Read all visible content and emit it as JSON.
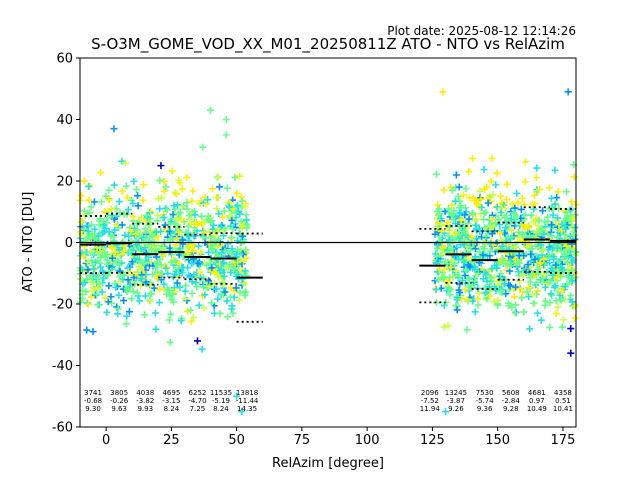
{
  "figure": {
    "plot_date": "Plot date: 2025-08-12 12:14:26"
  },
  "chart_data": {
    "type": "scatter",
    "title": "S-O3M_GOME_VOD_XX_M01_20250811Z ATO - NTO vs RelAzim",
    "xlabel": "RelAzim [degree]",
    "ylabel": "ATO - NTO [DU]",
    "xlim": [
      -10,
      180
    ],
    "ylim": [
      -60,
      60
    ],
    "xticks": [
      0,
      25,
      50,
      75,
      100,
      125,
      150,
      175
    ],
    "yticks": [
      -60,
      -40,
      -20,
      0,
      20,
      40,
      60
    ],
    "grid": false,
    "legend": "none",
    "colors": {
      "dark_blue": "#0000cc",
      "blue": "#0090ff",
      "cyan": "#22e0e8",
      "green": "#66ff88",
      "yellow_green": "#ccff44",
      "yellow": "#ffee00",
      "zero_line": "#000000"
    },
    "point_clouds": [
      {
        "x_range": [
          -10,
          54
        ],
        "y_center": -3,
        "y_spread": [
          -33,
          27
        ],
        "density": "high"
      },
      {
        "x_range": [
          126,
          180
        ],
        "y_center": -2,
        "y_spread": [
          -33,
          29
        ],
        "density": "high"
      }
    ],
    "outliers": [
      {
        "x": 40,
        "y": 43,
        "color": "green"
      },
      {
        "x": 46,
        "y": 40,
        "color": "green"
      },
      {
        "x": 46,
        "y": 35,
        "color": "green"
      },
      {
        "x": 37,
        "y": 31,
        "color": "green"
      },
      {
        "x": 3,
        "y": 37,
        "color": "blue"
      },
      {
        "x": 129,
        "y": 49,
        "color": "yellow"
      },
      {
        "x": 177,
        "y": 49,
        "color": "blue"
      },
      {
        "x": 21,
        "y": 25,
        "color": "dark_blue"
      },
      {
        "x": 50,
        "y": -50,
        "color": "cyan"
      },
      {
        "x": 52,
        "y": -55,
        "color": "cyan"
      },
      {
        "x": 130,
        "y": -55,
        "color": "cyan"
      },
      {
        "x": 178,
        "y": -36,
        "color": "dark_blue"
      },
      {
        "x": 178,
        "y": -28,
        "color": "dark_blue"
      },
      {
        "x": -5,
        "y": -29,
        "color": "blue"
      },
      {
        "x": 35,
        "y": -32,
        "color": "dark_blue"
      }
    ],
    "bins": [
      {
        "x_from": -10,
        "x_to": 0,
        "mean": -0.68,
        "std": 9.3,
        "count": "3741",
        "mean_label": "-0.68",
        "std_label": "9.30",
        "label_x": -5
      },
      {
        "x_from": 0,
        "x_to": 10,
        "mean": -0.26,
        "std": 9.63,
        "count": "3805",
        "mean_label": "-0.26",
        "std_label": "9.63",
        "label_x": 5
      },
      {
        "x_from": 10,
        "x_to": 20,
        "mean": -3.82,
        "std": 9.93,
        "count": "4038",
        "mean_label": "-3.82",
        "std_label": "9.93",
        "label_x": 15
      },
      {
        "x_from": 20,
        "x_to": 30,
        "mean": -3.15,
        "std": 8.24,
        "count": "4695",
        "mean_label": "-3.15",
        "std_label": "8.24",
        "label_x": 25
      },
      {
        "x_from": 30,
        "x_to": 40,
        "mean": -4.7,
        "std": 7.25,
        "count": "6252",
        "mean_label": "-4.70",
        "std_label": "7.25",
        "label_x": 35
      },
      {
        "x_from": 40,
        "x_to": 50,
        "mean": -5.19,
        "std": 8.24,
        "count": "11535",
        "mean_label": "-5.19",
        "std_label": "8.24",
        "label_x": 44
      },
      {
        "x_from": 50,
        "x_to": 60,
        "mean": -11.44,
        "std": 14.35,
        "count": "13818",
        "mean_label": "-11.44",
        "std_label": "14.35",
        "label_x": 54
      },
      {
        "x_from": 120,
        "x_to": 130,
        "mean": -7.52,
        "std": 11.94,
        "count": "2096",
        "mean_label": "-7.52",
        "std_label": "11.94",
        "label_x": 124
      },
      {
        "x_from": 130,
        "x_to": 140,
        "mean": -3.87,
        "std": 9.26,
        "count": "13245",
        "mean_label": "-3.87",
        "std_label": "9.26",
        "label_x": 134
      },
      {
        "x_from": 140,
        "x_to": 150,
        "mean": -5.74,
        "std": 9.36,
        "count": "7530",
        "mean_label": "-5.74",
        "std_label": "9.36",
        "label_x": 145
      },
      {
        "x_from": 150,
        "x_to": 160,
        "mean": -2.84,
        "std": 9.28,
        "count": "5608",
        "mean_label": "-2.84",
        "std_label": "9.28",
        "label_x": 155
      },
      {
        "x_from": 160,
        "x_to": 170,
        "mean": 0.97,
        "std": 10.49,
        "count": "4681",
        "mean_label": "0.97",
        "std_label": "10.49",
        "label_x": 165
      },
      {
        "x_from": 170,
        "x_to": 180,
        "mean": 0.51,
        "std": 10.41,
        "count": "4358",
        "mean_label": "0.51",
        "std_label": "10.41",
        "label_x": 175
      }
    ]
  }
}
